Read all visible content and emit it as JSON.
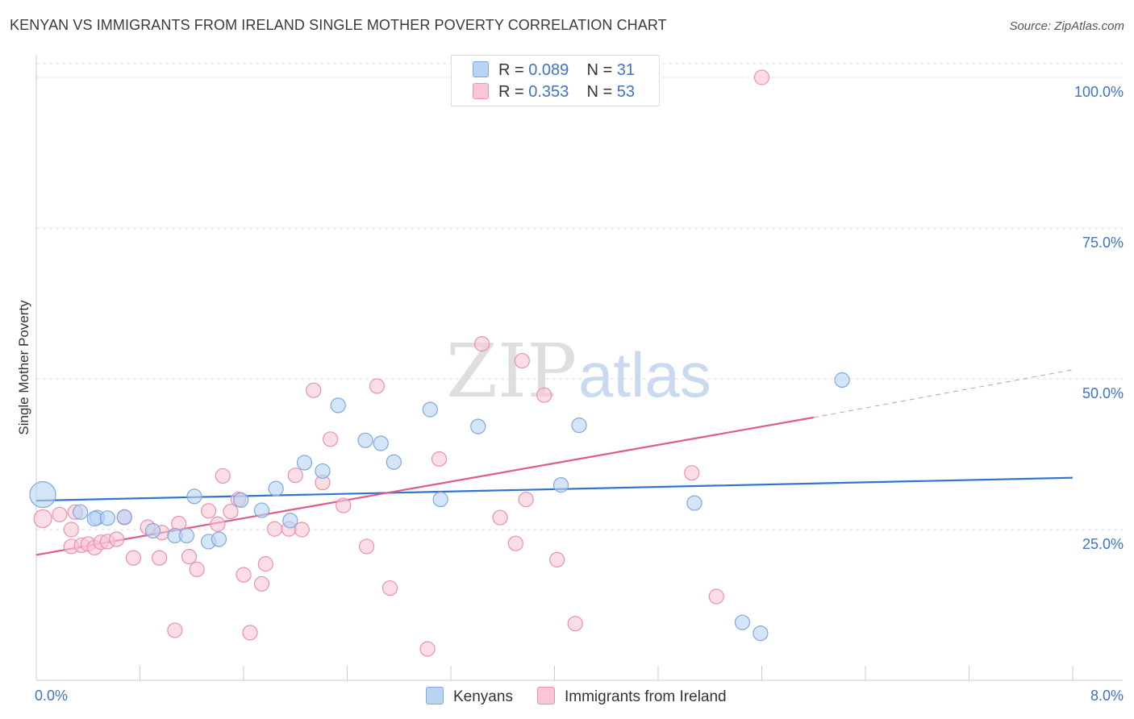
{
  "title": "KENYAN VS IMMIGRANTS FROM IRELAND SINGLE MOTHER POVERTY CORRELATION CHART",
  "source": "Source: ZipAtlas.com",
  "watermark": {
    "zip": "ZIP",
    "atlas": "atlas"
  },
  "colors": {
    "blue_fill": "#b9d3f3",
    "blue_stroke": "#7fa8de",
    "blue_line": "#2f74d0",
    "pink_fill": "#f8c6d6",
    "pink_stroke": "#ea91ad",
    "pink_line": "#e05a8a",
    "tick_text": "#3d74c4",
    "grid": "#dddddd"
  },
  "legend": {
    "rows": [
      {
        "r_label": "R =",
        "r_value": "0.089",
        "n_label": "N =",
        "n_value": "31"
      },
      {
        "r_label": "R =",
        "r_value": "0.353",
        "n_label": "N =",
        "n_value": "53"
      }
    ]
  },
  "chart_data": {
    "type": "scatter",
    "title": "KENYAN VS IMMIGRANTS FROM IRELAND SINGLE MOTHER POVERTY CORRELATION CHART",
    "xlabel": "",
    "ylabel": "Single Mother Poverty",
    "xlim": [
      0.0,
      8.0
    ],
    "ylim": [
      0.0,
      100.0
    ],
    "x_tick_labels": [
      "0.0%",
      "8.0%"
    ],
    "y_ticks": [
      25,
      50,
      75,
      100
    ],
    "y_tick_labels": [
      "25.0%",
      "50.0%",
      "75.0%",
      "100.0%"
    ],
    "grid": true,
    "legend_position": "top-center",
    "series": [
      {
        "name": "Kenyans",
        "color": "#b9d3f3",
        "points": [
          [
            0.05,
            30.8
          ],
          [
            0.34,
            27.9
          ],
          [
            0.47,
            27.0
          ],
          [
            0.45,
            26.8
          ],
          [
            0.55,
            26.9
          ],
          [
            0.68,
            27.1
          ],
          [
            0.9,
            24.8
          ],
          [
            1.07,
            24.0
          ],
          [
            1.16,
            24.0
          ],
          [
            1.22,
            30.5
          ],
          [
            1.33,
            23.0
          ],
          [
            1.41,
            23.4
          ],
          [
            1.58,
            29.9
          ],
          [
            1.74,
            28.2
          ],
          [
            1.85,
            31.8
          ],
          [
            1.96,
            26.5
          ],
          [
            2.07,
            36.1
          ],
          [
            2.21,
            34.7
          ],
          [
            2.33,
            45.6
          ],
          [
            2.54,
            39.8
          ],
          [
            2.66,
            39.3
          ],
          [
            2.76,
            36.2
          ],
          [
            3.04,
            44.9
          ],
          [
            3.12,
            30.0
          ],
          [
            3.41,
            42.1
          ],
          [
            4.05,
            32.4
          ],
          [
            4.19,
            42.3
          ],
          [
            5.08,
            29.4
          ],
          [
            5.45,
            9.6
          ],
          [
            5.59,
            7.8
          ],
          [
            6.22,
            49.8
          ]
        ],
        "sizes": [
          34,
          20,
          20,
          20,
          20,
          20,
          20,
          20,
          20,
          20,
          20,
          20,
          20,
          20,
          20,
          20,
          20,
          20,
          20,
          20,
          20,
          20,
          20,
          20,
          20,
          20,
          20,
          20,
          20,
          20,
          20
        ],
        "trend": {
          "x": [
            0.0,
            8.0
          ],
          "y": [
            29.8,
            33.6
          ]
        }
      },
      {
        "name": "Immigrants from Ireland",
        "color": "#f8c6d6",
        "points": [
          [
            0.05,
            26.8
          ],
          [
            0.18,
            27.5
          ],
          [
            0.3,
            27.9
          ],
          [
            0.27,
            25.0
          ],
          [
            0.27,
            22.2
          ],
          [
            0.35,
            22.4
          ],
          [
            0.4,
            22.6
          ],
          [
            0.45,
            22.0
          ],
          [
            0.5,
            22.9
          ],
          [
            0.55,
            23.0
          ],
          [
            0.62,
            23.4
          ],
          [
            0.68,
            27.0
          ],
          [
            0.75,
            20.3
          ],
          [
            0.86,
            25.4
          ],
          [
            0.95,
            20.3
          ],
          [
            0.97,
            24.5
          ],
          [
            1.07,
            8.3
          ],
          [
            1.1,
            26.0
          ],
          [
            1.18,
            20.5
          ],
          [
            1.24,
            18.4
          ],
          [
            1.33,
            28.1
          ],
          [
            1.4,
            25.9
          ],
          [
            1.44,
            33.9
          ],
          [
            1.5,
            28.0
          ],
          [
            1.56,
            30.0
          ],
          [
            1.6,
            17.5
          ],
          [
            1.65,
            7.9
          ],
          [
            1.74,
            16.0
          ],
          [
            1.77,
            19.3
          ],
          [
            1.84,
            25.1
          ],
          [
            1.95,
            25.1
          ],
          [
            2.0,
            34.0
          ],
          [
            2.05,
            25.0
          ],
          [
            2.14,
            48.1
          ],
          [
            2.21,
            32.8
          ],
          [
            2.27,
            40.0
          ],
          [
            2.37,
            29.0
          ],
          [
            2.55,
            22.2
          ],
          [
            2.63,
            48.8
          ],
          [
            2.73,
            15.3
          ],
          [
            3.02,
            5.2
          ],
          [
            3.11,
            36.7
          ],
          [
            3.44,
            55.8
          ],
          [
            3.58,
            27.0
          ],
          [
            3.7,
            22.7
          ],
          [
            3.75,
            53.0
          ],
          [
            3.78,
            30.0
          ],
          [
            3.92,
            47.3
          ],
          [
            4.02,
            20.0
          ],
          [
            4.16,
            9.4
          ],
          [
            5.06,
            34.4
          ],
          [
            5.25,
            13.9
          ],
          [
            5.6,
            100.0
          ]
        ],
        "sizes": [
          24,
          20,
          20,
          20,
          20,
          20,
          20,
          20,
          20,
          20,
          20,
          20,
          20,
          20,
          20,
          20,
          20,
          20,
          20,
          20,
          20,
          20,
          20,
          20,
          20,
          20,
          20,
          20,
          20,
          20,
          20,
          20,
          20,
          20,
          20,
          20,
          20,
          20,
          20,
          20,
          20,
          20,
          20,
          20,
          20,
          20,
          20,
          20,
          20,
          20,
          20,
          20,
          20
        ],
        "trend": {
          "x": [
            0.0,
            6.0
          ],
          "y": [
            20.8,
            43.6
          ],
          "dashed_x": [
            6.0,
            8.0
          ],
          "dashed_y": [
            43.6,
            51.5
          ]
        }
      }
    ]
  }
}
